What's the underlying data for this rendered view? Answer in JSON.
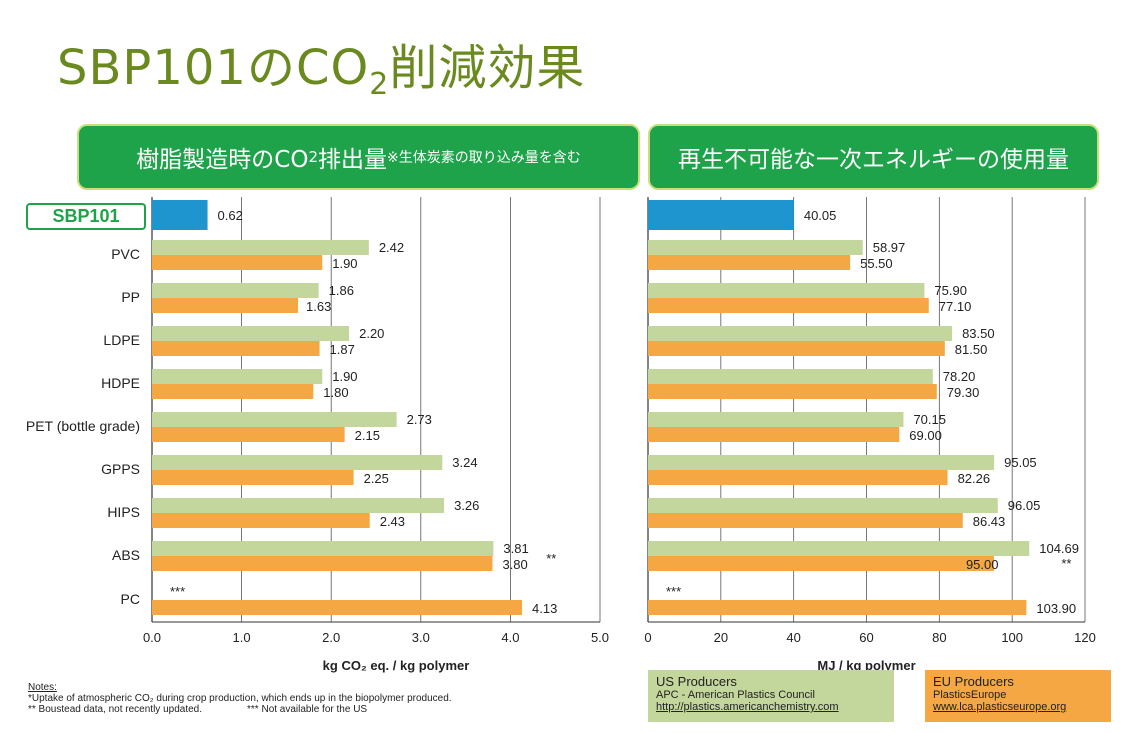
{
  "title": {
    "prefix": "SBP101のCO",
    "sub": "2",
    "suffix": "削減効果"
  },
  "banner_left": {
    "prefix": "樹脂製造時のCO",
    "sub": "2",
    "mid": "排出量",
    "note": "※生体炭素の取り込み量を含む"
  },
  "banner_right": {
    "text": "再生不可能な一次エネルギーの使用量"
  },
  "sbp_label": "SBP101",
  "colors": {
    "us": "#c3d69b",
    "eu": "#f4a742",
    "sbp": "#1f95d0",
    "title": "#6a8a1f",
    "banner": "#1fa34a"
  },
  "chart_data": [
    {
      "type": "bar",
      "orientation": "horizontal",
      "categories": [
        "SBP101",
        "PVC",
        "PP",
        "LDPE",
        "HDPE",
        "PET (bottle grade)",
        "GPPS",
        "HIPS",
        "ABS",
        "PC"
      ],
      "series": [
        {
          "name": "US Producers",
          "values": [
            null,
            2.42,
            1.86,
            2.2,
            1.9,
            2.73,
            3.24,
            3.26,
            3.81,
            null
          ],
          "labels": [
            "",
            "2.42",
            "1.86",
            "2.20",
            "1.90",
            "2.73",
            "3.24",
            "3.26",
            "3.81",
            "***"
          ]
        },
        {
          "name": "EU Producers",
          "values": [
            null,
            1.9,
            1.63,
            1.87,
            1.8,
            2.15,
            2.25,
            2.43,
            3.8,
            4.13
          ],
          "labels": [
            "",
            "1.90",
            "1.63",
            "1.87",
            "1.80",
            "2.15",
            "2.25",
            "2.43",
            "3.80",
            "4.13"
          ]
        },
        {
          "name": "SBP101",
          "values": [
            0.62,
            null,
            null,
            null,
            null,
            null,
            null,
            null,
            null,
            null
          ],
          "labels": [
            "0.62",
            "",
            "",
            "",
            "",
            "",
            "",
            "",
            "",
            ""
          ]
        }
      ],
      "annotations": [
        {
          "category": "ABS",
          "text": "**"
        }
      ],
      "xlabel": "kg CO₂ eq. / kg polymer",
      "xlim": [
        0,
        5
      ],
      "xticks": [
        "0.0",
        "1.0",
        "2.0",
        "3.0",
        "4.0",
        "5.0"
      ],
      "grid": true
    },
    {
      "type": "bar",
      "orientation": "horizontal",
      "categories": [
        "SBP101",
        "PVC",
        "PP",
        "LDPE",
        "HDPE",
        "PET (bottle grade)",
        "GPPS",
        "HIPS",
        "ABS",
        "PC"
      ],
      "series": [
        {
          "name": "US Producers",
          "values": [
            null,
            58.97,
            75.9,
            83.5,
            78.2,
            70.15,
            95.05,
            96.05,
            104.69,
            null
          ],
          "labels": [
            "",
            "58.97",
            "75.90",
            "83.50",
            "78.20",
            "70.15",
            "95.05",
            "96.05",
            "104.69",
            "***"
          ]
        },
        {
          "name": "EU Producers",
          "values": [
            null,
            55.5,
            77.1,
            81.5,
            79.3,
            69.0,
            82.26,
            86.43,
            95.0,
            103.9
          ],
          "labels": [
            "",
            "55.50",
            "77.10",
            "81.50",
            "79.30",
            "69.00",
            "82.26",
            "86.43",
            "95.00",
            "103.90"
          ]
        },
        {
          "name": "SBP101",
          "values": [
            40.05,
            null,
            null,
            null,
            null,
            null,
            null,
            null,
            null,
            null
          ],
          "labels": [
            "40.05",
            "",
            "",
            "",
            "",
            "",
            "",
            "",
            "",
            ""
          ]
        }
      ],
      "annotations": [
        {
          "category": "ABS",
          "text": "**"
        }
      ],
      "xlabel": "MJ / kg polymer",
      "xlim": [
        0,
        120
      ],
      "xticks": [
        "0",
        "20",
        "40",
        "60",
        "80",
        "100",
        "120"
      ],
      "grid": true
    }
  ],
  "notes": {
    "heading": "Notes:",
    "line1": "*Uptake of atmospheric CO₂ during crop production, which ends up in the biopolymer produced.",
    "line2a": "** Boustead data, not recently updated.",
    "line2b": "*** Not available for the US"
  },
  "legend": {
    "us": {
      "title": "US Producers",
      "org": "APC - American Plastics  Council",
      "url": "http://plastics.americanchemistry.com"
    },
    "eu": {
      "title": "EU Producers",
      "org": "PlasticsEurope",
      "url": "www.lca.plasticseurope.org"
    }
  }
}
